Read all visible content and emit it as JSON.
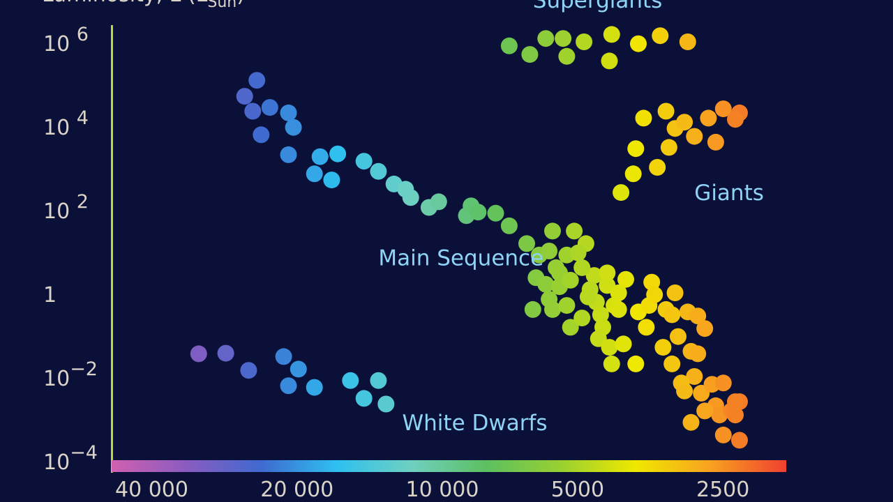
{
  "chart_data": {
    "type": "scatter",
    "title": "",
    "ylabel": "Luminosity, L (L",
    "ylabel_sub": "Sun",
    "ylabel_close": ")",
    "xlabel": "",
    "x_scale": "log",
    "x_reversed": true,
    "y_scale": "log",
    "xlim": [
      50000,
      2000
    ],
    "ylim": [
      1e-05,
      10000000
    ],
    "grid": false,
    "legend": "none",
    "colorbar": {
      "orientation": "horizontal",
      "position": "bottom",
      "stops": [
        "#d060b0",
        "#8a5cc0",
        "#3f6ad0",
        "#2ec0f0",
        "#6fd0c0",
        "#5cc060",
        "#9ad030",
        "#f0e800",
        "#f8a020",
        "#f04030"
      ]
    },
    "x_ticks": [
      {
        "value": 40000,
        "label": "40 000"
      },
      {
        "value": 20000,
        "label": "20 000"
      },
      {
        "value": 10000,
        "label": "10 000"
      },
      {
        "value": 5000,
        "label": "5000"
      },
      {
        "value": 2500,
        "label": "2500"
      }
    ],
    "y_ticks": [
      {
        "value": 1000000,
        "base": "10",
        "exp": "6",
        "sep": " "
      },
      {
        "value": 10000,
        "base": "10",
        "exp": "4",
        "sep": " "
      },
      {
        "value": 100,
        "base": "10",
        "exp": "2",
        "sep": " "
      },
      {
        "value": 1,
        "base": "1",
        "exp": "",
        "sep": ""
      },
      {
        "value": 0.01,
        "base": "10",
        "exp": "−2",
        "sep": ""
      },
      {
        "value": 0.0001,
        "base": "10",
        "exp": "−4",
        "sep": ""
      }
    ],
    "annotations": [
      {
        "text": "Supergiants",
        "x": 6700,
        "y": 10000000
      },
      {
        "text": "Giants",
        "x": 3100,
        "y": 250
      },
      {
        "text": "Main Sequence",
        "x": 14000,
        "y": 7
      },
      {
        "text": "White Dwarfs",
        "x": 12500,
        "y": 0.0008
      }
    ],
    "series": [
      {
        "name": "Supergiants",
        "points": [
          [
            7500,
            800000
          ],
          [
            6800,
            500000
          ],
          [
            6300,
            1200000
          ],
          [
            5800,
            1200000
          ],
          [
            5700,
            450000
          ],
          [
            5250,
            1000000
          ],
          [
            4600,
            1500000
          ],
          [
            4650,
            350000
          ],
          [
            4050,
            900000
          ],
          [
            3650,
            1400000
          ],
          [
            3200,
            1000000
          ]
        ]
      },
      {
        "name": "Giants",
        "points": [
          [
            3950,
            15000
          ],
          [
            3550,
            22000
          ],
          [
            3400,
            8500
          ],
          [
            3100,
            5500
          ],
          [
            3700,
            1000
          ],
          [
            4100,
            2800
          ],
          [
            4150,
            700
          ],
          [
            4400,
            250
          ],
          [
            3500,
            3000
          ],
          [
            3250,
            12000
          ],
          [
            2900,
            15000
          ],
          [
            2700,
            25000
          ],
          [
            2500,
            20000
          ],
          [
            2550,
            14000
          ],
          [
            2800,
            4000
          ]
        ]
      },
      {
        "name": "Main Sequence",
        "points": [
          [
            25000,
            120000
          ],
          [
            26500,
            50000
          ],
          [
            25500,
            22000
          ],
          [
            23500,
            27000
          ],
          [
            21500,
            20000
          ],
          [
            21000,
            9000
          ],
          [
            24500,
            6000
          ],
          [
            21500,
            2000
          ],
          [
            18500,
            1800
          ],
          [
            17000,
            2100
          ],
          [
            15000,
            1400
          ],
          [
            13000,
            400
          ],
          [
            14000,
            800
          ],
          [
            19000,
            700
          ],
          [
            17500,
            500
          ],
          [
            12000,
            190
          ],
          [
            11000,
            110
          ],
          [
            12300,
            300
          ],
          [
            10500,
            150
          ],
          [
            9200,
            70
          ],
          [
            9000,
            120
          ],
          [
            8700,
            85
          ],
          [
            8000,
            80
          ],
          [
            7500,
            40
          ],
          [
            6900,
            15
          ],
          [
            6500,
            8
          ],
          [
            6200,
            10
          ],
          [
            6100,
            30
          ],
          [
            6000,
            4
          ],
          [
            5700,
            8
          ],
          [
            6600,
            2.3
          ],
          [
            6300,
            1.6
          ],
          [
            6200,
            0.7
          ],
          [
            6100,
            0.4
          ],
          [
            6700,
            0.4
          ],
          [
            5900,
            1.4
          ],
          [
            5700,
            0.5
          ],
          [
            5600,
            0.15
          ],
          [
            5300,
            0.25
          ],
          [
            5500,
            30
          ],
          [
            5200,
            15
          ],
          [
            5000,
            2.6
          ],
          [
            5100,
            1.2
          ],
          [
            4950,
            0.6
          ],
          [
            4850,
            0.3
          ],
          [
            4800,
            0.15
          ],
          [
            4900,
            0.08
          ],
          [
            4650,
            0.05
          ],
          [
            4600,
            0.02
          ],
          [
            5150,
            0.8
          ],
          [
            5300,
            4
          ],
          [
            5400,
            9
          ],
          [
            5900,
            3
          ],
          [
            5600,
            2
          ],
          [
            4700,
            1.5
          ],
          [
            4550,
            0.5
          ],
          [
            4450,
            0.4
          ],
          [
            4450,
            1
          ],
          [
            4350,
            0.06
          ],
          [
            4100,
            0.02
          ],
          [
            4050,
            0.35
          ],
          [
            3900,
            0.15
          ],
          [
            3850,
            0.5
          ],
          [
            3800,
            1.8
          ],
          [
            3750,
            0.9
          ],
          [
            3550,
            0.4
          ],
          [
            3600,
            0.05
          ],
          [
            3450,
            0.02
          ],
          [
            3400,
            1
          ],
          [
            3350,
            0.09
          ],
          [
            3200,
            0.35
          ],
          [
            3050,
            0.28
          ],
          [
            2950,
            0.14
          ],
          [
            3150,
            0.04
          ],
          [
            3100,
            0.01
          ],
          [
            3050,
            0.035
          ],
          [
            3300,
            0.007
          ],
          [
            3250,
            0.0045
          ],
          [
            3000,
            0.004
          ],
          [
            2850,
            0.0065
          ],
          [
            2700,
            0.007
          ],
          [
            2800,
            0.002
          ],
          [
            2750,
            0.0012
          ],
          [
            2600,
            0.0015
          ],
          [
            2500,
            0.0025
          ],
          [
            2550,
            0.0025
          ],
          [
            2550,
            0.0012
          ],
          [
            2700,
            0.0004
          ],
          [
            2950,
            0.0015
          ],
          [
            3150,
            0.0008
          ],
          [
            3450,
            0.3
          ],
          [
            4300,
            2.1
          ],
          [
            4700,
            3
          ],
          [
            2500,
            0.0003
          ]
        ]
      },
      {
        "name": "White Dwarfs",
        "points": [
          [
            33000,
            0.035
          ],
          [
            29000,
            0.036
          ],
          [
            26000,
            0.014
          ],
          [
            22000,
            0.03
          ],
          [
            20500,
            0.015
          ],
          [
            21500,
            0.006
          ],
          [
            19000,
            0.0055
          ],
          [
            16000,
            0.008
          ],
          [
            14000,
            0.008
          ],
          [
            15000,
            0.003
          ],
          [
            13500,
            0.0022
          ]
        ]
      }
    ]
  }
}
